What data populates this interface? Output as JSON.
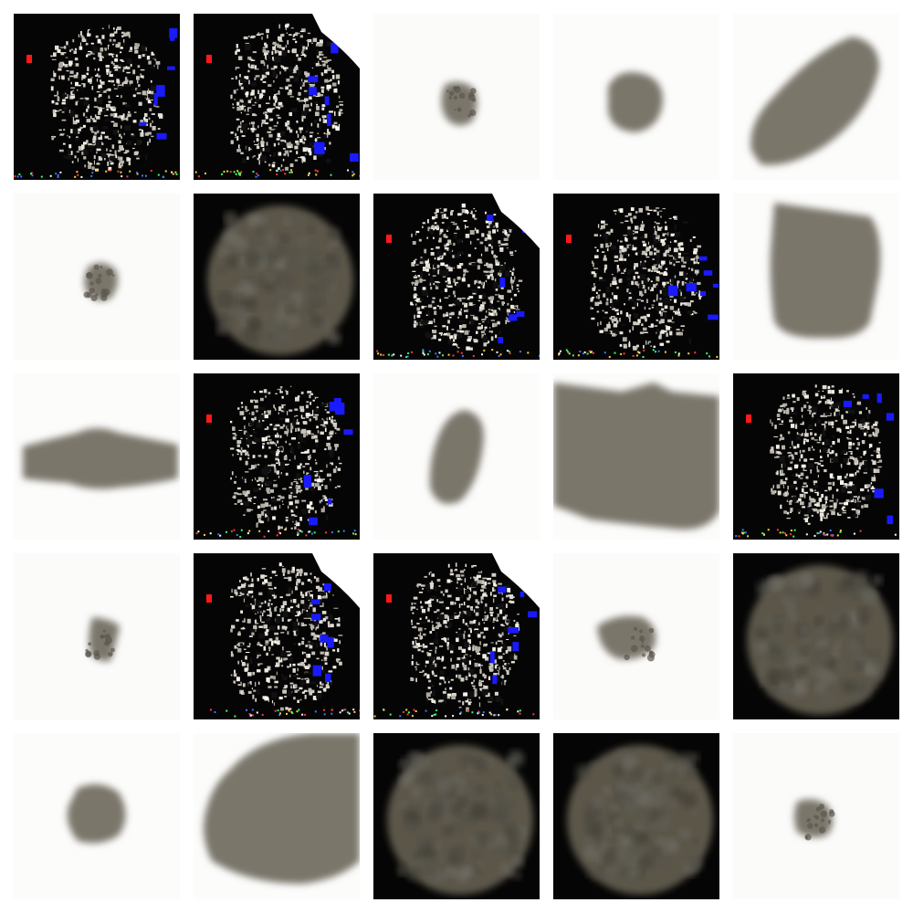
{
  "grid": {
    "rows": 5,
    "columns": 5,
    "tiles": [
      {
        "kind": "noisy-dark",
        "variant": "a"
      },
      {
        "kind": "noisy-dark",
        "variant": "b"
      },
      {
        "kind": "small-blob-light",
        "variant": "a"
      },
      {
        "kind": "blob-light",
        "variant": "a"
      },
      {
        "kind": "blob-light",
        "variant": "diag"
      },
      {
        "kind": "small-blob-light",
        "variant": "b"
      },
      {
        "kind": "textured-dark",
        "variant": "a"
      },
      {
        "kind": "noisy-dark",
        "variant": "c"
      },
      {
        "kind": "noisy-dark",
        "variant": "d"
      },
      {
        "kind": "blob-light",
        "variant": "tall"
      },
      {
        "kind": "blob-light",
        "variant": "wide"
      },
      {
        "kind": "noisy-dark",
        "variant": "e"
      },
      {
        "kind": "blob-light",
        "variant": "oval"
      },
      {
        "kind": "blob-light",
        "variant": "large"
      },
      {
        "kind": "noisy-dark",
        "variant": "f"
      },
      {
        "kind": "small-blob-light",
        "variant": "c"
      },
      {
        "kind": "noisy-dark",
        "variant": "g"
      },
      {
        "kind": "noisy-dark",
        "variant": "h"
      },
      {
        "kind": "small-blob-light",
        "variant": "d"
      },
      {
        "kind": "textured-dark",
        "variant": "b"
      },
      {
        "kind": "blob-light",
        "variant": "round"
      },
      {
        "kind": "blob-light",
        "variant": "huge"
      },
      {
        "kind": "textured-dark",
        "variant": "c"
      },
      {
        "kind": "textured-dark",
        "variant": "d"
      },
      {
        "kind": "small-blob-light",
        "variant": "e"
      }
    ]
  },
  "colors": {
    "background": "#ffffff",
    "dark_bg": "#050505",
    "blob_gray": "#7a766a",
    "blob_dark": "#5c594f",
    "speck_light": "#e9e6dc",
    "accent_blue": "#1a1aff",
    "accent_red": "#ff1a1a"
  }
}
